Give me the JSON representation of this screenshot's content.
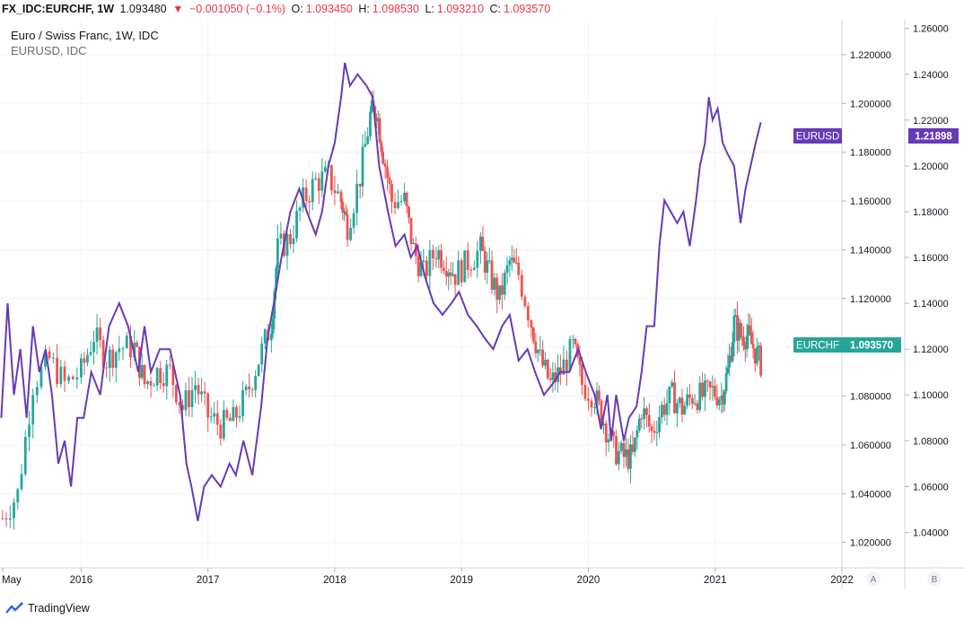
{
  "header": {
    "symbol": "FX_IDC:EURCHF, 1W",
    "last": "1.093480",
    "change": "−0.001050 (−0.1%)",
    "open_label": "O:",
    "open": "1.093450",
    "high_label": "H:",
    "high": "1.098530",
    "low_label": "L:",
    "low": "1.093210",
    "close_label": "C:",
    "close": "1.093570"
  },
  "legend": {
    "main": "Euro / Swiss Franc, 1W, IDC",
    "overlay": "EURUSD, IDC"
  },
  "scale_buttons": [
    "A",
    "B"
  ],
  "footer": {
    "brand": "TradingView"
  },
  "chart_data": {
    "type": "line",
    "x_ticks": [
      "May",
      "2016",
      "2017",
      "2018",
      "2019",
      "2020",
      "2021",
      "2022"
    ],
    "y_left_ticks": [
      "1.220000",
      "1.200000",
      "1.180000",
      "1.160000",
      "1.140000",
      "1.120000",
      "1.100000",
      "1.080000",
      "1.060000",
      "1.040000",
      "1.020000"
    ],
    "y_right_ticks": [
      "1.26000",
      "1.24000",
      "1.22000",
      "1.20000",
      "1.18000",
      "1.16000",
      "1.14000",
      "1.12000",
      "1.10000",
      "1.08000",
      "1.06000",
      "1.04000"
    ],
    "xlim": [
      2015.36,
      2022.0
    ],
    "series": [
      {
        "name": "EURCHF",
        "kind": "candlestick",
        "axis": "left",
        "ylim": [
          1.0096,
          1.2343
        ],
        "color_up": "#26a69a",
        "color_down": "#ef5350",
        "last_value": "1.093570",
        "points": [
          [
            2015.38,
            1.03
          ],
          [
            2015.5,
            1.04
          ],
          [
            2015.62,
            1.085
          ],
          [
            2015.75,
            1.095
          ],
          [
            2015.87,
            1.085
          ],
          [
            2016.0,
            1.09
          ],
          [
            2016.1,
            1.105
          ],
          [
            2016.2,
            1.095
          ],
          [
            2016.3,
            1.1
          ],
          [
            2016.42,
            1.1
          ],
          [
            2016.5,
            1.085
          ],
          [
            2016.6,
            1.09
          ],
          [
            2016.7,
            1.09
          ],
          [
            2016.8,
            1.075
          ],
          [
            2016.9,
            1.085
          ],
          [
            2017.0,
            1.072
          ],
          [
            2017.1,
            1.068
          ],
          [
            2017.2,
            1.07
          ],
          [
            2017.3,
            1.08
          ],
          [
            2017.4,
            1.095
          ],
          [
            2017.5,
            1.11
          ],
          [
            2017.55,
            1.14
          ],
          [
            2017.65,
            1.145
          ],
          [
            2017.75,
            1.16
          ],
          [
            2017.85,
            1.168
          ],
          [
            2017.95,
            1.17
          ],
          [
            2018.05,
            1.16
          ],
          [
            2018.1,
            1.15
          ],
          [
            2018.2,
            1.17
          ],
          [
            2018.28,
            1.195
          ],
          [
            2018.33,
            1.198
          ],
          [
            2018.38,
            1.18
          ],
          [
            2018.45,
            1.16
          ],
          [
            2018.55,
            1.16
          ],
          [
            2018.62,
            1.14
          ],
          [
            2018.7,
            1.13
          ],
          [
            2018.8,
            1.14
          ],
          [
            2018.88,
            1.135
          ],
          [
            2018.95,
            1.13
          ],
          [
            2019.05,
            1.135
          ],
          [
            2019.15,
            1.14
          ],
          [
            2019.22,
            1.13
          ],
          [
            2019.3,
            1.12
          ],
          [
            2019.38,
            1.135
          ],
          [
            2019.45,
            1.13
          ],
          [
            2019.55,
            1.11
          ],
          [
            2019.62,
            1.095
          ],
          [
            2019.7,
            1.085
          ],
          [
            2019.78,
            1.09
          ],
          [
            2019.88,
            1.1
          ],
          [
            2019.95,
            1.085
          ],
          [
            2020.05,
            1.08
          ],
          [
            2020.12,
            1.07
          ],
          [
            2020.2,
            1.058
          ],
          [
            2020.28,
            1.055
          ],
          [
            2020.35,
            1.055
          ],
          [
            2020.42,
            1.075
          ],
          [
            2020.5,
            1.065
          ],
          [
            2020.58,
            1.075
          ],
          [
            2020.66,
            1.08
          ],
          [
            2020.74,
            1.075
          ],
          [
            2020.82,
            1.08
          ],
          [
            2020.9,
            1.08
          ],
          [
            2020.98,
            1.082
          ],
          [
            2021.05,
            1.08
          ],
          [
            2021.1,
            1.09
          ],
          [
            2021.15,
            1.11
          ],
          [
            2021.2,
            1.105
          ],
          [
            2021.25,
            1.105
          ],
          [
            2021.3,
            1.1
          ],
          [
            2021.36,
            1.0936
          ]
        ]
      },
      {
        "name": "EURUSD",
        "kind": "line",
        "axis": "right",
        "ylim": [
          1.0245,
          1.2638
        ],
        "color": "#673ab7",
        "last_value": "1.21898",
        "points": [
          [
            2015.37,
            1.09
          ],
          [
            2015.42,
            1.14
          ],
          [
            2015.47,
            1.1
          ],
          [
            2015.52,
            1.12
          ],
          [
            2015.57,
            1.09
          ],
          [
            2015.62,
            1.13
          ],
          [
            2015.67,
            1.11
          ],
          [
            2015.72,
            1.12
          ],
          [
            2015.77,
            1.1
          ],
          [
            2015.82,
            1.07
          ],
          [
            2015.87,
            1.08
          ],
          [
            2015.92,
            1.06
          ],
          [
            2015.97,
            1.09
          ],
          [
            2016.02,
            1.09
          ],
          [
            2016.08,
            1.11
          ],
          [
            2016.15,
            1.1
          ],
          [
            2016.22,
            1.13
          ],
          [
            2016.3,
            1.14
          ],
          [
            2016.37,
            1.13
          ],
          [
            2016.45,
            1.11
          ],
          [
            2016.5,
            1.13
          ],
          [
            2016.55,
            1.11
          ],
          [
            2016.62,
            1.12
          ],
          [
            2016.7,
            1.12
          ],
          [
            2016.78,
            1.1
          ],
          [
            2016.83,
            1.07
          ],
          [
            2016.87,
            1.06
          ],
          [
            2016.92,
            1.045
          ],
          [
            2016.97,
            1.06
          ],
          [
            2017.03,
            1.065
          ],
          [
            2017.1,
            1.06
          ],
          [
            2017.17,
            1.07
          ],
          [
            2017.22,
            1.065
          ],
          [
            2017.28,
            1.08
          ],
          [
            2017.35,
            1.065
          ],
          [
            2017.42,
            1.095
          ],
          [
            2017.47,
            1.125
          ],
          [
            2017.52,
            1.14
          ],
          [
            2017.58,
            1.16
          ],
          [
            2017.65,
            1.18
          ],
          [
            2017.72,
            1.19
          ],
          [
            2017.78,
            1.18
          ],
          [
            2017.85,
            1.17
          ],
          [
            2017.9,
            1.18
          ],
          [
            2017.95,
            1.2
          ],
          [
            2018.0,
            1.21
          ],
          [
            2018.05,
            1.23
          ],
          [
            2018.08,
            1.245
          ],
          [
            2018.12,
            1.235
          ],
          [
            2018.18,
            1.24
          ],
          [
            2018.25,
            1.235
          ],
          [
            2018.3,
            1.23
          ],
          [
            2018.35,
            1.2
          ],
          [
            2018.42,
            1.18
          ],
          [
            2018.48,
            1.165
          ],
          [
            2018.55,
            1.17
          ],
          [
            2018.6,
            1.16
          ],
          [
            2018.65,
            1.165
          ],
          [
            2018.72,
            1.15
          ],
          [
            2018.78,
            1.14
          ],
          [
            2018.85,
            1.135
          ],
          [
            2018.92,
            1.14
          ],
          [
            2018.98,
            1.145
          ],
          [
            2019.05,
            1.135
          ],
          [
            2019.12,
            1.13
          ],
          [
            2019.18,
            1.125
          ],
          [
            2019.25,
            1.12
          ],
          [
            2019.32,
            1.13
          ],
          [
            2019.38,
            1.135
          ],
          [
            2019.45,
            1.115
          ],
          [
            2019.52,
            1.12
          ],
          [
            2019.58,
            1.11
          ],
          [
            2019.65,
            1.1
          ],
          [
            2019.72,
            1.105
          ],
          [
            2019.78,
            1.11
          ],
          [
            2019.85,
            1.11
          ],
          [
            2019.92,
            1.12
          ],
          [
            2019.98,
            1.11
          ],
          [
            2020.05,
            1.1
          ],
          [
            2020.1,
            1.085
          ],
          [
            2020.15,
            1.1
          ],
          [
            2020.18,
            1.08
          ],
          [
            2020.22,
            1.1
          ],
          [
            2020.28,
            1.08
          ],
          [
            2020.32,
            1.09
          ],
          [
            2020.38,
            1.095
          ],
          [
            2020.42,
            1.11
          ],
          [
            2020.46,
            1.13
          ],
          [
            2020.52,
            1.13
          ],
          [
            2020.56,
            1.165
          ],
          [
            2020.6,
            1.185
          ],
          [
            2020.65,
            1.18
          ],
          [
            2020.7,
            1.175
          ],
          [
            2020.75,
            1.18
          ],
          [
            2020.8,
            1.165
          ],
          [
            2020.85,
            1.185
          ],
          [
            2020.88,
            1.2
          ],
          [
            2020.92,
            1.21
          ],
          [
            2020.95,
            1.23
          ],
          [
            2020.98,
            1.22
          ],
          [
            2021.02,
            1.225
          ],
          [
            2021.06,
            1.21
          ],
          [
            2021.1,
            1.205
          ],
          [
            2021.15,
            1.2
          ],
          [
            2021.2,
            1.175
          ],
          [
            2021.24,
            1.19
          ],
          [
            2021.28,
            1.2
          ],
          [
            2021.32,
            1.21
          ],
          [
            2021.36,
            1.219
          ]
        ]
      }
    ]
  }
}
